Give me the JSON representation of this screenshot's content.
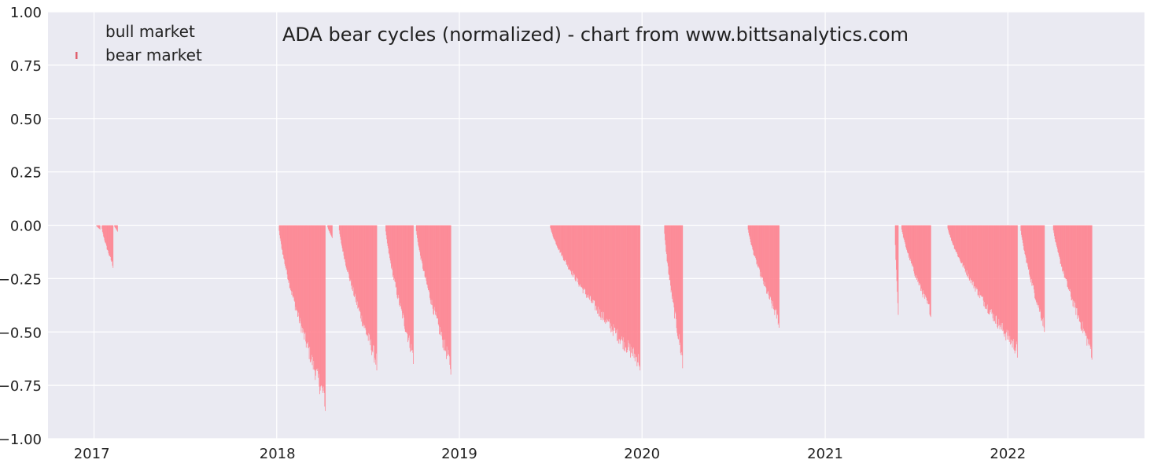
{
  "chart_data": {
    "type": "bar",
    "title": "ADA bear cycles (normalized)  - chart from www.bittsanalytics.com",
    "xlabel": "",
    "ylabel": "",
    "xlim": [
      "2016-10-01",
      "2022-10-01"
    ],
    "ylim": [
      -1.0,
      1.0
    ],
    "yticks": [
      1.0,
      0.75,
      0.5,
      0.25,
      0.0,
      -0.25,
      -0.5,
      -0.75,
      -1.0
    ],
    "ytick_labels": [
      "1.00",
      "0.75",
      "0.50",
      "0.25",
      "0.00",
      "−0.25",
      "−0.50",
      "−0.75",
      "−1.00"
    ],
    "xticks": [
      "2017-01-01",
      "2018-01-01",
      "2019-01-01",
      "2020-01-01",
      "2021-01-01",
      "2022-01-01"
    ],
    "xtick_labels": [
      "2017",
      "2018",
      "2019",
      "2020",
      "2021",
      "2022"
    ],
    "grid": true,
    "legend_position": "top-left",
    "colors": {
      "background": "#eaeaf2",
      "grid": "#ffffff",
      "bull": "#ffffff",
      "bear": "#ff7f8c",
      "bear_edge": "#e0606e"
    },
    "series": [
      {
        "name": "bull market",
        "color": "#ffffff",
        "segments": []
      },
      {
        "name": "bear market",
        "color": "#ff7f8c",
        "segments": [
          {
            "start": "2017-01-05",
            "end": "2017-01-13",
            "drawdown": -0.02
          },
          {
            "start": "2017-01-16",
            "end": "2017-02-08",
            "drawdown": -0.2
          },
          {
            "start": "2017-02-10",
            "end": "2017-02-17",
            "drawdown": -0.03
          },
          {
            "start": "2018-01-05",
            "end": "2018-04-08",
            "drawdown": -0.87
          },
          {
            "start": "2018-04-12",
            "end": "2018-04-22",
            "drawdown": -0.06
          },
          {
            "start": "2018-05-05",
            "end": "2018-07-20",
            "drawdown": -0.68
          },
          {
            "start": "2018-08-06",
            "end": "2018-10-01",
            "drawdown": -0.65
          },
          {
            "start": "2018-10-06",
            "end": "2018-12-15",
            "drawdown": -0.7
          },
          {
            "start": "2019-07-01",
            "end": "2019-12-28",
            "drawdown": -0.68
          },
          {
            "start": "2020-02-14",
            "end": "2020-03-22",
            "drawdown": -0.67
          },
          {
            "start": "2020-07-30",
            "end": "2020-10-01",
            "drawdown": -0.48
          },
          {
            "start": "2021-05-20",
            "end": "2021-05-27",
            "drawdown": -0.42
          },
          {
            "start": "2021-06-02",
            "end": "2021-07-31",
            "drawdown": -0.43
          },
          {
            "start": "2021-09-02",
            "end": "2022-01-20",
            "drawdown": -0.62
          },
          {
            "start": "2022-01-26",
            "end": "2022-03-15",
            "drawdown": -0.5
          },
          {
            "start": "2022-04-01",
            "end": "2022-06-18",
            "drawdown": -0.63
          }
        ]
      }
    ]
  }
}
